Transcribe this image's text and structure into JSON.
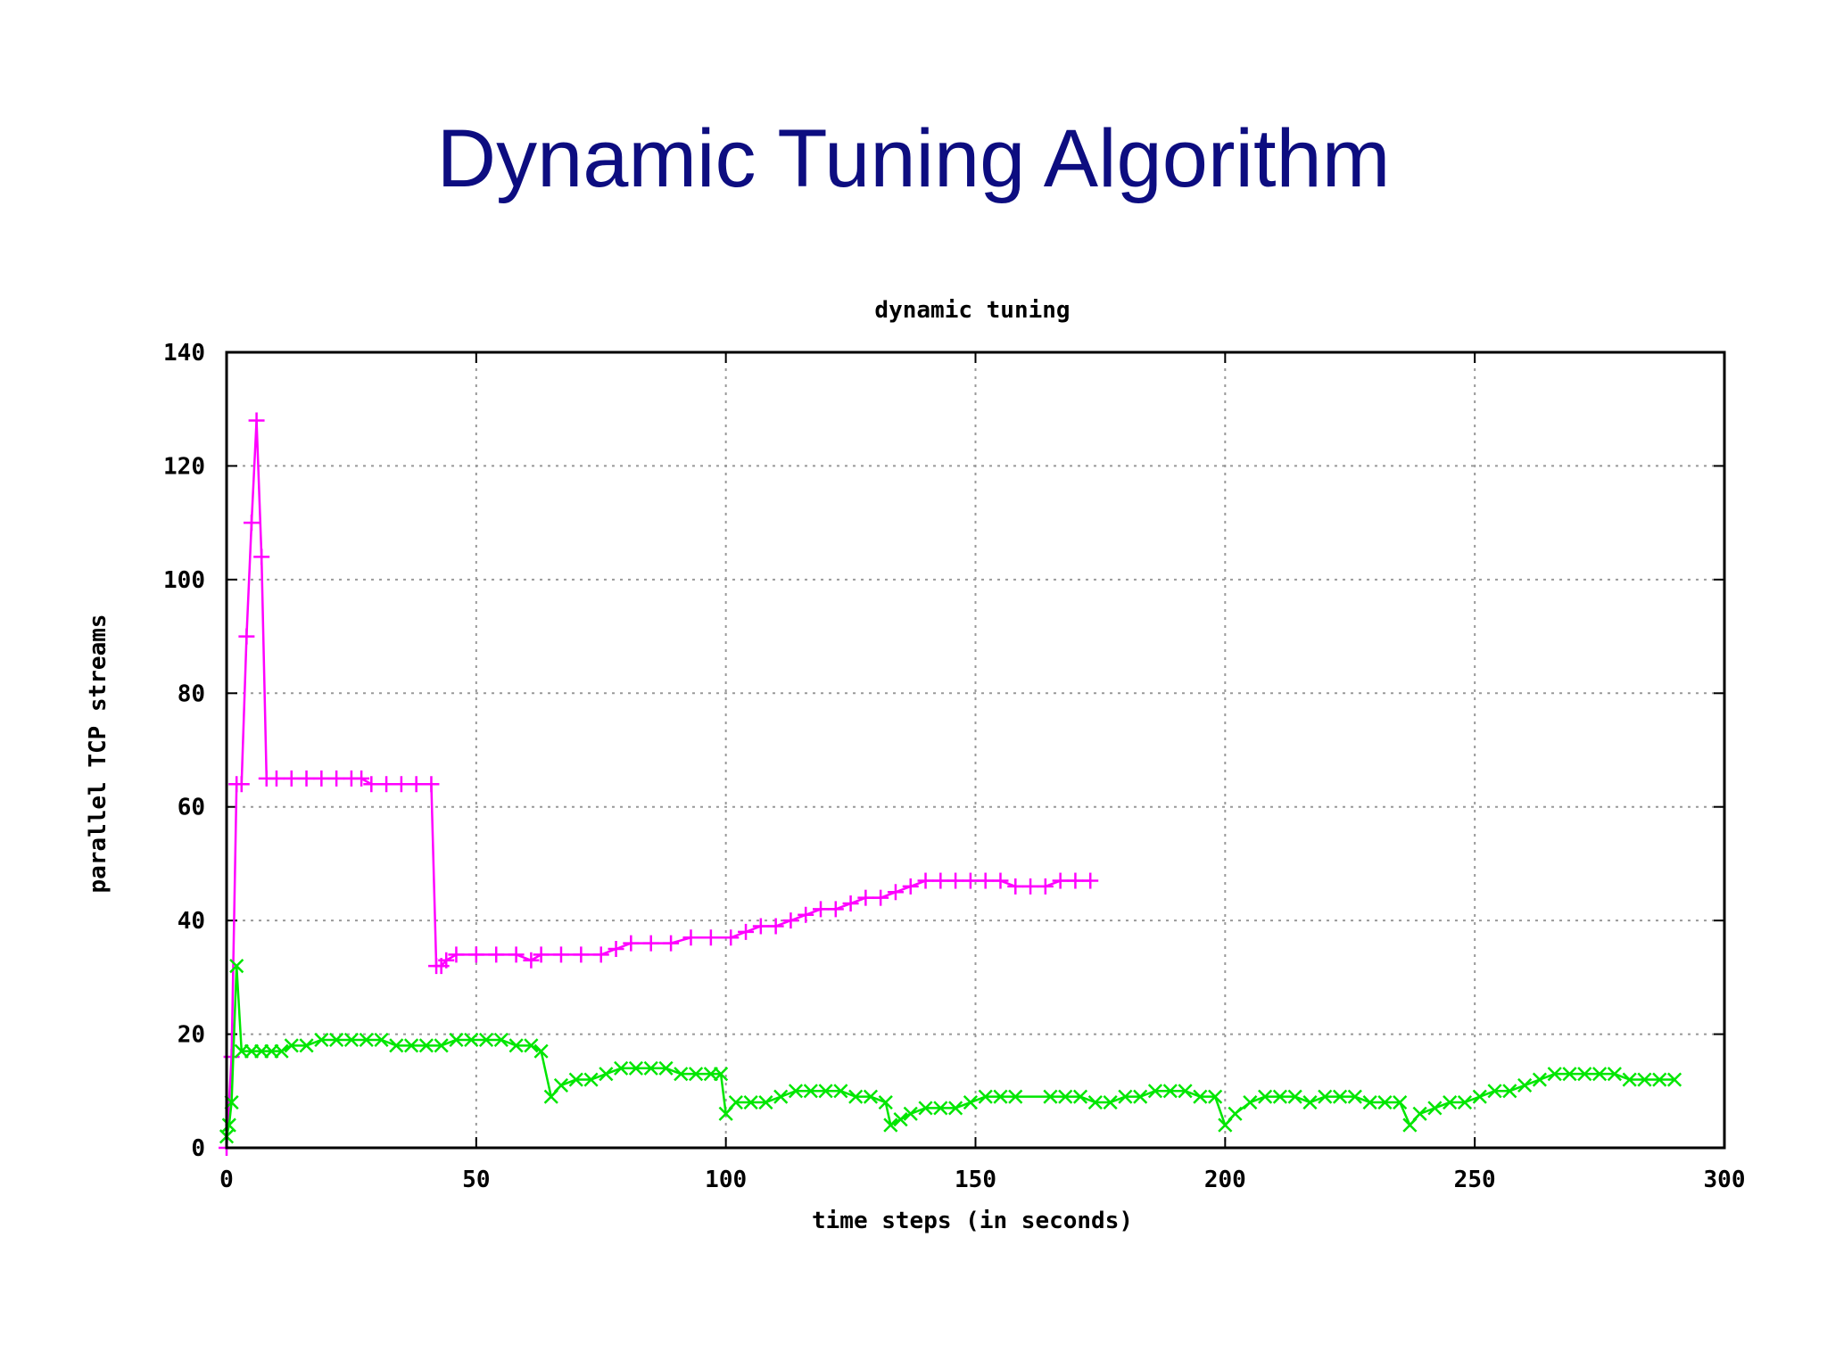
{
  "slide": {
    "title": "Dynamic Tuning Algorithm"
  },
  "chart_data": {
    "type": "line",
    "title": "dynamic tuning",
    "xlabel": "time steps (in seconds)",
    "ylabel": "parallel TCP streams",
    "xlim": [
      0,
      300
    ],
    "ylim": [
      0,
      140
    ],
    "xticks": [
      0,
      50,
      100,
      150,
      200,
      250,
      300
    ],
    "yticks": [
      0,
      20,
      40,
      60,
      80,
      100,
      120,
      140
    ],
    "grid": true,
    "series": [
      {
        "color": "#ff00ff",
        "marker": "plus",
        "points": [
          [
            0,
            0
          ],
          [
            1,
            16
          ],
          [
            2,
            64
          ],
          [
            3,
            64
          ],
          [
            4,
            90
          ],
          [
            5,
            110
          ],
          [
            6,
            128
          ],
          [
            7,
            104
          ],
          [
            8,
            65
          ],
          [
            10,
            65
          ],
          [
            13,
            65
          ],
          [
            16,
            65
          ],
          [
            19,
            65
          ],
          [
            22,
            65
          ],
          [
            25,
            65
          ],
          [
            27,
            65
          ],
          [
            29,
            64
          ],
          [
            32,
            64
          ],
          [
            35,
            64
          ],
          [
            38,
            64
          ],
          [
            41,
            64
          ],
          [
            42,
            32
          ],
          [
            43,
            32
          ],
          [
            44,
            33
          ],
          [
            46,
            34
          ],
          [
            50,
            34
          ],
          [
            54,
            34
          ],
          [
            58,
            34
          ],
          [
            61,
            33
          ],
          [
            63,
            34
          ],
          [
            67,
            34
          ],
          [
            71,
            34
          ],
          [
            75,
            34
          ],
          [
            78,
            35
          ],
          [
            81,
            36
          ],
          [
            85,
            36
          ],
          [
            89,
            36
          ],
          [
            93,
            37
          ],
          [
            97,
            37
          ],
          [
            101,
            37
          ],
          [
            104,
            38
          ],
          [
            107,
            39
          ],
          [
            110,
            39
          ],
          [
            113,
            40
          ],
          [
            116,
            41
          ],
          [
            119,
            42
          ],
          [
            122,
            42
          ],
          [
            125,
            43
          ],
          [
            128,
            44
          ],
          [
            131,
            44
          ],
          [
            134,
            45
          ],
          [
            137,
            46
          ],
          [
            140,
            47
          ],
          [
            143,
            47
          ],
          [
            146,
            47
          ],
          [
            149,
            47
          ],
          [
            152,
            47
          ],
          [
            155,
            47
          ],
          [
            158,
            46
          ],
          [
            161,
            46
          ],
          [
            164,
            46
          ],
          [
            167,
            47
          ],
          [
            170,
            47
          ],
          [
            173,
            47
          ]
        ]
      },
      {
        "color": "#00e600",
        "marker": "x",
        "points": [
          [
            0,
            2
          ],
          [
            0.5,
            4
          ],
          [
            1,
            8
          ],
          [
            2,
            32
          ],
          [
            3,
            17
          ],
          [
            5,
            17
          ],
          [
            7,
            17
          ],
          [
            9,
            17
          ],
          [
            11,
            17
          ],
          [
            13,
            18
          ],
          [
            16,
            18
          ],
          [
            19,
            19
          ],
          [
            22,
            19
          ],
          [
            25,
            19
          ],
          [
            28,
            19
          ],
          [
            31,
            19
          ],
          [
            34,
            18
          ],
          [
            37,
            18
          ],
          [
            40,
            18
          ],
          [
            43,
            18
          ],
          [
            46,
            19
          ],
          [
            49,
            19
          ],
          [
            52,
            19
          ],
          [
            55,
            19
          ],
          [
            58,
            18
          ],
          [
            61,
            18
          ],
          [
            63,
            17
          ],
          [
            65,
            9
          ],
          [
            67,
            11
          ],
          [
            70,
            12
          ],
          [
            73,
            12
          ],
          [
            76,
            13
          ],
          [
            79,
            14
          ],
          [
            82,
            14
          ],
          [
            85,
            14
          ],
          [
            88,
            14
          ],
          [
            91,
            13
          ],
          [
            94,
            13
          ],
          [
            97,
            13
          ],
          [
            99,
            13
          ],
          [
            100,
            6
          ],
          [
            102,
            8
          ],
          [
            105,
            8
          ],
          [
            108,
            8
          ],
          [
            111,
            9
          ],
          [
            114,
            10
          ],
          [
            117,
            10
          ],
          [
            120,
            10
          ],
          [
            123,
            10
          ],
          [
            126,
            9
          ],
          [
            129,
            9
          ],
          [
            132,
            8
          ],
          [
            133,
            4
          ],
          [
            135,
            5
          ],
          [
            137,
            6
          ],
          [
            140,
            7
          ],
          [
            143,
            7
          ],
          [
            146,
            7
          ],
          [
            149,
            8
          ],
          [
            152,
            9
          ],
          [
            155,
            9
          ],
          [
            158,
            9
          ],
          [
            165,
            9
          ],
          [
            168,
            9
          ],
          [
            171,
            9
          ],
          [
            174,
            8
          ],
          [
            177,
            8
          ],
          [
            180,
            9
          ],
          [
            183,
            9
          ],
          [
            186,
            10
          ],
          [
            189,
            10
          ],
          [
            192,
            10
          ],
          [
            195,
            9
          ],
          [
            198,
            9
          ],
          [
            200,
            4
          ],
          [
            202,
            6
          ],
          [
            205,
            8
          ],
          [
            208,
            9
          ],
          [
            211,
            9
          ],
          [
            214,
            9
          ],
          [
            217,
            8
          ],
          [
            220,
            9
          ],
          [
            223,
            9
          ],
          [
            226,
            9
          ],
          [
            229,
            8
          ],
          [
            232,
            8
          ],
          [
            235,
            8
          ],
          [
            237,
            4
          ],
          [
            239,
            6
          ],
          [
            242,
            7
          ],
          [
            245,
            8
          ],
          [
            248,
            8
          ],
          [
            251,
            9
          ],
          [
            254,
            10
          ],
          [
            257,
            10
          ],
          [
            260,
            11
          ],
          [
            263,
            12
          ],
          [
            266,
            13
          ],
          [
            269,
            13
          ],
          [
            272,
            13
          ],
          [
            275,
            13
          ],
          [
            278,
            13
          ],
          [
            281,
            12
          ],
          [
            284,
            12
          ],
          [
            287,
            12
          ],
          [
            290,
            12
          ]
        ]
      }
    ]
  }
}
